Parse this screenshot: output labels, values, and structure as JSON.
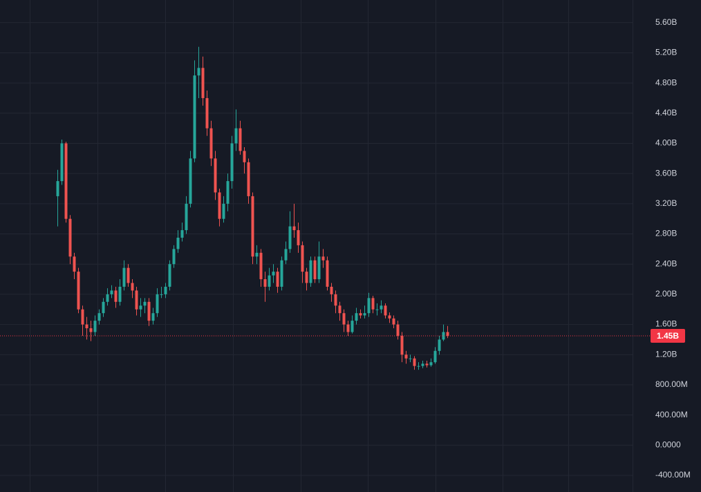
{
  "chart_data": {
    "type": "candlestick",
    "ylim": [
      -0.62,
      5.9
    ],
    "yticks": [
      {
        "value": 5.6,
        "label": "5.60B"
      },
      {
        "value": 5.2,
        "label": "5.20B"
      },
      {
        "value": 4.8,
        "label": "4.80B"
      },
      {
        "value": 4.4,
        "label": "4.40B"
      },
      {
        "value": 4.0,
        "label": "4.00B"
      },
      {
        "value": 3.6,
        "label": "3.60B"
      },
      {
        "value": 3.2,
        "label": "3.20B"
      },
      {
        "value": 2.8,
        "label": "2.80B"
      },
      {
        "value": 2.4,
        "label": "2.40B"
      },
      {
        "value": 2.0,
        "label": "2.00B"
      },
      {
        "value": 1.6,
        "label": "1.60B"
      },
      {
        "value": 1.2,
        "label": "1.20B"
      },
      {
        "value": 0.8,
        "label": "800.00M"
      },
      {
        "value": 0.4,
        "label": "400.00M"
      },
      {
        "value": 0,
        "label": "0.0000"
      },
      {
        "value": -0.4,
        "label": "-400.00M"
      }
    ],
    "grid": true,
    "up_color": "#26a69a",
    "down_color": "#ef5350",
    "price_line": {
      "value": 1.45,
      "label": "1.45B",
      "color": "#f23645"
    },
    "open": [
      3.3,
      3.5,
      4.0,
      3.0,
      2.5,
      2.3,
      1.8,
      1.6,
      1.55,
      1.5,
      1.65,
      1.75,
      1.9,
      2.0,
      2.05,
      1.9,
      2.1,
      2.35,
      2.15,
      2.05,
      1.8,
      1.85,
      1.9,
      1.65,
      1.75,
      2.0,
      2.0,
      2.1,
      2.4,
      2.6,
      2.75,
      2.85,
      3.2,
      3.8,
      4.9,
      5.0,
      4.6,
      4.2,
      3.8,
      3.35,
      3.0,
      3.2,
      3.5,
      4.0,
      4.2,
      3.9,
      3.75,
      3.3,
      2.5,
      2.55,
      2.2,
      2.1,
      2.25,
      2.3,
      2.1,
      2.45,
      2.6,
      2.9,
      2.85,
      2.65,
      2.3,
      2.15,
      2.45,
      2.2,
      2.5,
      2.45,
      2.1,
      2.0,
      1.85,
      1.75,
      1.6,
      1.5,
      1.65,
      1.75,
      1.72,
      1.75,
      1.95,
      1.8,
      1.8,
      1.85,
      1.72,
      1.68,
      1.6,
      1.45,
      1.2,
      1.15,
      1.15,
      1.05,
      1.05,
      1.08,
      1.06,
      1.1,
      1.25,
      1.4,
      1.5
    ],
    "high": [
      3.65,
      4.05,
      4.02,
      3.05,
      2.55,
      2.35,
      1.85,
      1.7,
      1.65,
      1.72,
      1.8,
      1.95,
      2.08,
      2.12,
      2.1,
      2.2,
      2.45,
      2.4,
      2.2,
      2.1,
      1.95,
      1.95,
      1.95,
      1.82,
      2.08,
      2.1,
      2.15,
      2.45,
      2.65,
      2.85,
      2.95,
      3.3,
      3.9,
      5.1,
      5.28,
      5.15,
      4.7,
      4.3,
      3.9,
      3.4,
      3.3,
      3.6,
      4.1,
      4.45,
      4.3,
      3.95,
      3.8,
      3.35,
      2.65,
      2.6,
      2.3,
      2.35,
      2.4,
      2.35,
      2.5,
      2.7,
      3.1,
      3.2,
      2.95,
      2.7,
      2.35,
      2.5,
      2.5,
      2.7,
      2.6,
      2.5,
      2.15,
      2.05,
      1.9,
      1.8,
      1.65,
      1.72,
      1.82,
      1.8,
      1.85,
      2.02,
      1.98,
      1.88,
      1.92,
      1.88,
      1.76,
      1.72,
      1.65,
      1.5,
      1.25,
      1.2,
      1.18,
      1.1,
      1.12,
      1.12,
      1.15,
      1.3,
      1.45,
      1.6,
      1.58
    ],
    "low": [
      2.9,
      3.45,
      2.95,
      2.4,
      2.2,
      1.75,
      1.45,
      1.4,
      1.38,
      1.45,
      1.6,
      1.7,
      1.85,
      1.95,
      1.82,
      1.85,
      2.05,
      2.1,
      1.95,
      1.72,
      1.7,
      1.75,
      1.58,
      1.6,
      1.7,
      1.95,
      1.95,
      2.05,
      2.35,
      2.55,
      2.7,
      2.8,
      3.15,
      3.75,
      4.6,
      4.5,
      4.1,
      3.7,
      3.25,
      2.9,
      2.95,
      3.1,
      3.4,
      3.9,
      3.85,
      3.6,
      3.2,
      2.4,
      2.4,
      2.1,
      1.9,
      2.05,
      2.15,
      2.02,
      2.05,
      2.4,
      2.55,
      2.75,
      2.55,
      2.15,
      2.05,
      2.1,
      2.15,
      2.15,
      2.35,
      2.05,
      1.9,
      1.75,
      1.65,
      1.5,
      1.45,
      1.48,
      1.6,
      1.68,
      1.68,
      1.7,
      1.75,
      1.72,
      1.75,
      1.68,
      1.62,
      1.55,
      1.4,
      1.1,
      1.08,
      1.1,
      1.0,
      1.0,
      1.02,
      1.03,
      1.04,
      1.08,
      1.2,
      1.38,
      1.42
    ],
    "close": [
      3.5,
      4.0,
      3.0,
      2.5,
      2.3,
      1.8,
      1.6,
      1.55,
      1.5,
      1.65,
      1.75,
      1.9,
      2.0,
      2.05,
      1.9,
      2.1,
      2.35,
      2.15,
      2.05,
      1.8,
      1.85,
      1.9,
      1.65,
      1.75,
      2.0,
      2.0,
      2.1,
      2.4,
      2.6,
      2.75,
      2.85,
      3.2,
      3.8,
      4.9,
      5.0,
      4.6,
      4.2,
      3.8,
      3.35,
      3.0,
      3.2,
      3.5,
      4.0,
      4.2,
      3.9,
      3.75,
      3.3,
      2.5,
      2.55,
      2.2,
      2.1,
      2.25,
      2.3,
      2.1,
      2.45,
      2.6,
      2.9,
      2.85,
      2.65,
      2.3,
      2.15,
      2.45,
      2.2,
      2.5,
      2.45,
      2.1,
      2.0,
      1.85,
      1.75,
      1.6,
      1.5,
      1.65,
      1.75,
      1.72,
      1.75,
      1.95,
      1.8,
      1.8,
      1.85,
      1.72,
      1.68,
      1.6,
      1.45,
      1.2,
      1.15,
      1.15,
      1.05,
      1.05,
      1.08,
      1.06,
      1.1,
      1.25,
      1.4,
      1.5,
      1.45
    ]
  }
}
